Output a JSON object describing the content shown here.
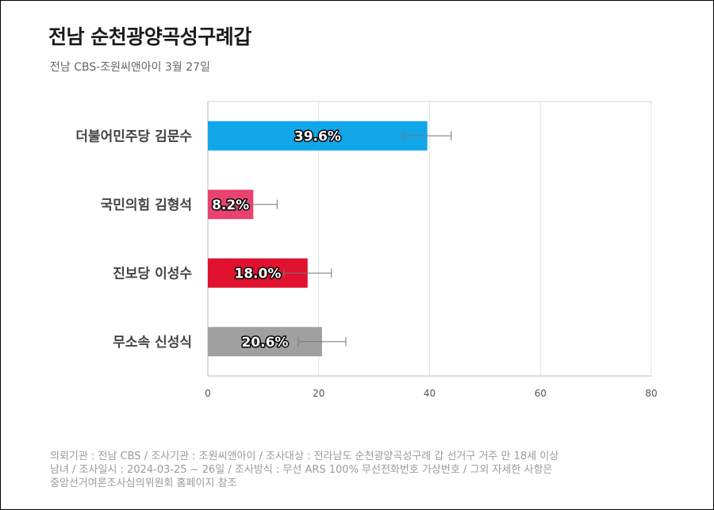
{
  "header": {
    "title": "전남 순천광양곡성구례갑",
    "subtitle": "전남 CBS-조원씨앤아이 3월 27일"
  },
  "footer": {
    "lines": [
      "의뢰기관 : 전남 CBS / 조사기관 : 조원씨앤아이 / 조사대상 : 전라남도 순천광양곡성구례 갑 선거구 거주 만 18세 이상",
      "남녀 / 조사일시 : 2024-03-25 ~ 26일 / 조사방식 : 무선 ARS 100% 무선전화번호 가상번호 / 그외 자세한 사항은",
      "중앙선거여론조사심의위원회 홈페이지 참조"
    ]
  },
  "chart_data": {
    "type": "bar",
    "orientation": "horizontal",
    "title": "전남 순천광양곡성구례갑",
    "subtitle": "전남 CBS-조원씨앤아이 3월 27일",
    "categories": [
      "더불어민주당 김문수",
      "국민의힘 김형석",
      "진보당 이성수",
      "무소속 신성식"
    ],
    "values": [
      39.6,
      8.2,
      18.0,
      20.6
    ],
    "value_labels": [
      "39.6%",
      "8.2%",
      "18.0%",
      "20.6%"
    ],
    "error_low": [
      35.3,
      3.9,
      13.7,
      16.3
    ],
    "error_high": [
      43.9,
      12.5,
      22.3,
      24.9
    ],
    "colors": [
      "#12a6e8",
      "#e8426e",
      "#e0122f",
      "#a0a0a0"
    ],
    "xlim": [
      0,
      80
    ],
    "xticks": [
      0,
      20,
      40,
      60,
      80
    ],
    "grid": true,
    "legend": "none"
  }
}
